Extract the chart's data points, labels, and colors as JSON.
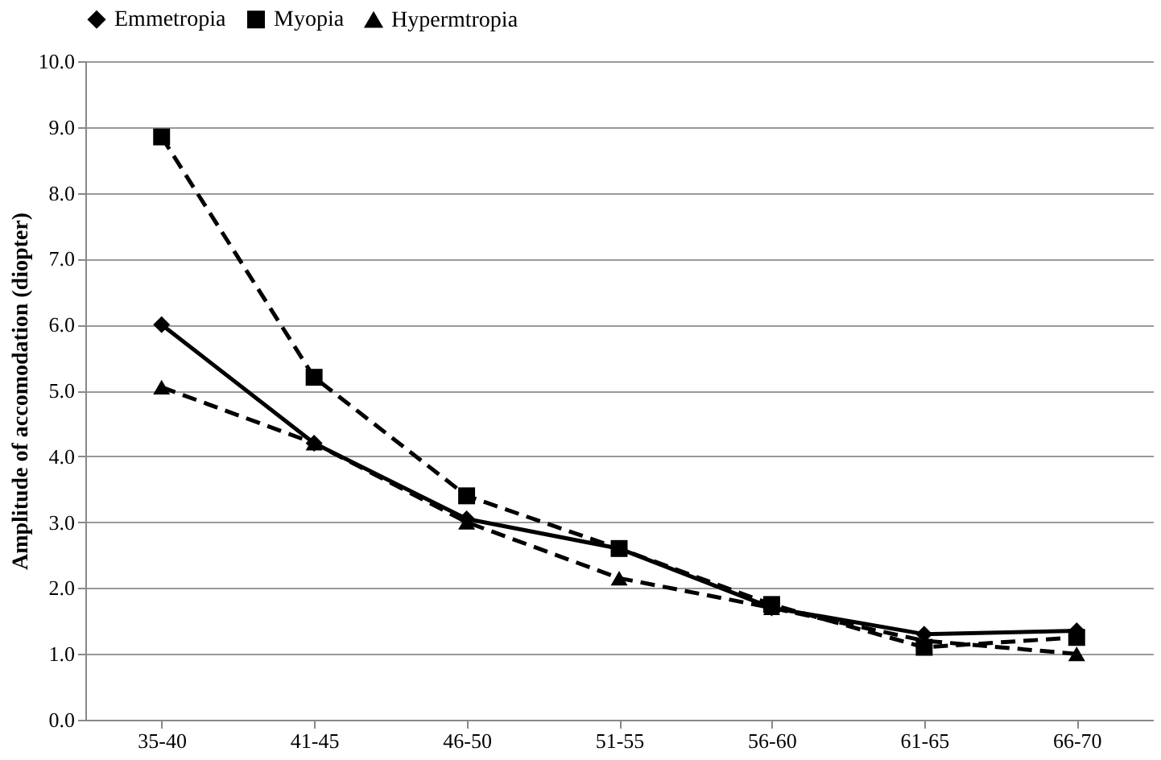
{
  "chart_data": {
    "type": "line",
    "ylabel": "Amplitude of accomodation (diopter)",
    "categories": [
      "35-40",
      "41-45",
      "46-50",
      "51-55",
      "56-60",
      "61-65",
      "66-70"
    ],
    "series": [
      {
        "name": "Emmetropia",
        "color": "#000000",
        "marker": "diamond",
        "line_style": "solid",
        "values": [
          6.0,
          4.2,
          3.05,
          2.6,
          1.7,
          1.3,
          1.35
        ]
      },
      {
        "name": "Myopia",
        "color": "#000000",
        "marker": "square",
        "line_style": "dashed",
        "values": [
          8.85,
          5.2,
          3.4,
          2.6,
          1.75,
          1.1,
          1.25
        ]
      },
      {
        "name": "Hypermtropia",
        "color": "#000000",
        "marker": "triangle",
        "line_style": "dashed",
        "values": [
          5.05,
          4.2,
          3.0,
          2.15,
          1.7,
          1.2,
          1.0
        ]
      }
    ],
    "ylim": [
      0,
      10
    ],
    "yticks": [
      {
        "value": 0,
        "label": "0.0"
      },
      {
        "value": 1,
        "label": "1.0"
      },
      {
        "value": 2,
        "label": "2.0"
      },
      {
        "value": 3,
        "label": "3.0"
      },
      {
        "value": 4,
        "label": "4.0"
      },
      {
        "value": 5,
        "label": "5.0"
      },
      {
        "value": 6,
        "label": "6.0"
      },
      {
        "value": 7,
        "label": "7.0"
      },
      {
        "value": 8,
        "label": "8.0"
      },
      {
        "value": 9,
        "label": "9.0"
      },
      {
        "value": 10,
        "label": "10.0"
      }
    ],
    "grid": "y",
    "legend": "top"
  }
}
